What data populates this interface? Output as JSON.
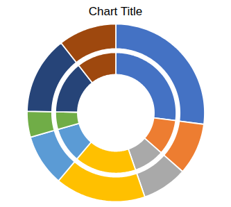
{
  "chart_data": {
    "type": "donut",
    "title": "Chart Title",
    "series": [
      {
        "values": [
          23,
          8,
          7,
          14,
          8,
          4,
          12,
          9
        ],
        "colors": [
          "#4472C4",
          "#ED7D31",
          "#A9A9A9",
          "#FFC000",
          "#5B9BD5",
          "#70AD47",
          "#264478",
          "#9E480E"
        ]
      },
      {
        "values": [
          23,
          8,
          7,
          14,
          8,
          4,
          12,
          9
        ],
        "colors": [
          "#4472C4",
          "#ED7D31",
          "#A9A9A9",
          "#FFC000",
          "#5B9BD5",
          "#70AD47",
          "#264478",
          "#9E480E"
        ]
      }
    ]
  }
}
